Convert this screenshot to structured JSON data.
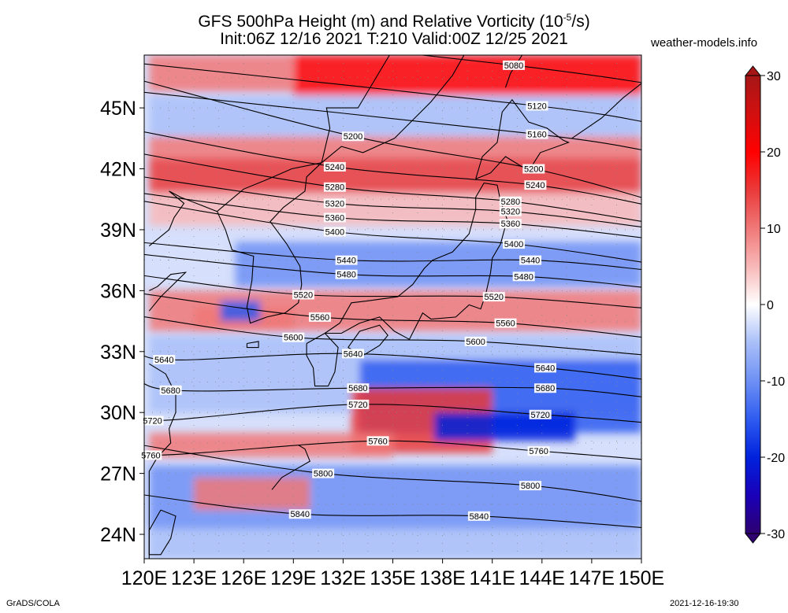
{
  "title": {
    "line1_a": "GFS 500hPa Height (m) and Relative Vorticity (10",
    "line1_sup": "-5",
    "line1_b": "/s)",
    "line2": "Init:06Z 12/16 2021 T:210 Valid:00Z 12/25 2021"
  },
  "site_label": "weather-models.info",
  "footer": {
    "left": "GrADS/COLA",
    "right": "2021-12-16-19:30"
  },
  "map": {
    "lon_range": [
      120,
      150
    ],
    "lat_range": [
      22.8,
      47.6
    ],
    "lon_ticks": [
      "120E",
      "123E",
      "126E",
      "129E",
      "132E",
      "135E",
      "138E",
      "141E",
      "144E",
      "147E",
      "150E"
    ],
    "lat_ticks": [
      "24N",
      "27N",
      "30N",
      "33N",
      "36N",
      "39N",
      "42N",
      "45N"
    ],
    "height_contours": [
      {
        "value": 5080,
        "label_pos": [
          [
            142.3,
            47.1
          ]
        ]
      },
      {
        "value": 5120,
        "label_pos": [
          [
            143.7,
            45.1
          ]
        ]
      },
      {
        "value": 5160,
        "label_pos": [
          [
            143.7,
            43.7
          ]
        ]
      },
      {
        "value": 5200,
        "label_pos": [
          [
            132.6,
            43.6
          ],
          [
            143.5,
            42.0
          ]
        ]
      },
      {
        "value": 5240,
        "label_pos": [
          [
            131.5,
            42.1
          ],
          [
            143.6,
            41.2
          ]
        ]
      },
      {
        "value": 5280,
        "label_pos": [
          [
            131.5,
            41.1
          ],
          [
            142.1,
            40.4
          ]
        ]
      },
      {
        "value": 5320,
        "label_pos": [
          [
            131.5,
            40.3
          ],
          [
            142.1,
            39.9
          ]
        ]
      },
      {
        "value": 5360,
        "label_pos": [
          [
            131.5,
            39.6
          ],
          [
            142.1,
            39.3
          ]
        ]
      },
      {
        "value": 5400,
        "label_pos": [
          [
            131.5,
            38.9
          ],
          [
            142.3,
            38.3
          ]
        ]
      },
      {
        "value": 5440,
        "label_pos": [
          [
            132.2,
            37.5
          ],
          [
            143.3,
            37.5
          ]
        ]
      },
      {
        "value": 5480,
        "label_pos": [
          [
            132.2,
            36.8
          ],
          [
            142.9,
            36.7
          ]
        ]
      },
      {
        "value": 5520,
        "label_pos": [
          [
            129.6,
            35.8
          ],
          [
            141.1,
            35.7
          ]
        ]
      },
      {
        "value": 5560,
        "label_pos": [
          [
            130.6,
            34.7
          ],
          [
            141.8,
            34.4
          ]
        ]
      },
      {
        "value": 5600,
        "label_pos": [
          [
            129.0,
            33.7
          ],
          [
            140.0,
            33.5
          ]
        ]
      },
      {
        "value": 5640,
        "label_pos": [
          [
            121.2,
            32.6
          ],
          [
            132.6,
            32.9
          ],
          [
            144.2,
            32.2
          ]
        ]
      },
      {
        "value": 5680,
        "label_pos": [
          [
            121.6,
            31.1
          ],
          [
            132.9,
            31.2
          ],
          [
            144.2,
            31.2
          ]
        ]
      },
      {
        "value": 5720,
        "label_pos": [
          [
            120.5,
            29.6
          ],
          [
            132.9,
            30.4
          ],
          [
            143.9,
            29.9
          ]
        ]
      },
      {
        "value": 5760,
        "label_pos": [
          [
            120.4,
            27.9
          ],
          [
            134.1,
            28.6
          ],
          [
            143.8,
            28.1
          ]
        ]
      },
      {
        "value": 5800,
        "label_pos": [
          [
            130.8,
            27.0
          ],
          [
            143.3,
            26.4
          ]
        ]
      },
      {
        "value": 5840,
        "label_pos": [
          [
            129.4,
            25.0
          ],
          [
            140.2,
            24.9
          ]
        ]
      }
    ],
    "vorticity_regions": [
      {
        "sign": "positive",
        "strength": 14,
        "lon": [
          120.3,
          150.0
        ],
        "lat": [
          40.8,
          42.6
        ]
      },
      {
        "sign": "positive",
        "strength": 9,
        "lon": [
          120.3,
          150.0
        ],
        "lat": [
          42.5,
          43.6
        ]
      },
      {
        "sign": "positive",
        "strength": 18,
        "lon": [
          129.0,
          150.0
        ],
        "lat": [
          45.6,
          47.6
        ]
      },
      {
        "sign": "positive",
        "strength": 8,
        "lon": [
          120.3,
          129.0
        ],
        "lat": [
          45.8,
          47.6
        ]
      },
      {
        "sign": "positive",
        "strength": 5,
        "lon": [
          120.3,
          150.0
        ],
        "lat": [
          39.2,
          40.8
        ]
      },
      {
        "sign": "negative",
        "strength": 6,
        "lon": [
          120.3,
          150.0
        ],
        "lat": [
          43.6,
          45.6
        ]
      },
      {
        "sign": "negative",
        "strength": 8,
        "lon": [
          125.5,
          150.0
        ],
        "lat": [
          36.2,
          38.4
        ]
      },
      {
        "sign": "positive",
        "strength": 8,
        "lon": [
          120.3,
          150.0
        ],
        "lat": [
          34.0,
          36.0
        ]
      },
      {
        "sign": "positive",
        "strength": 12,
        "lon": [
          123.0,
          129.0
        ],
        "lat": [
          34.0,
          35.2
        ]
      },
      {
        "sign": "negative",
        "strength": 16,
        "lon": [
          124.6,
          127.0
        ],
        "lat": [
          34.5,
          35.5
        ]
      },
      {
        "sign": "negative",
        "strength": 6,
        "lon": [
          120.3,
          150.0
        ],
        "lat": [
          30.0,
          33.8
        ]
      },
      {
        "sign": "negative",
        "strength": 14,
        "lon": [
          133.0,
          150.0
        ],
        "lat": [
          29.0,
          32.6
        ]
      },
      {
        "sign": "positive",
        "strength": 16,
        "lon": [
          132.5,
          141.0
        ],
        "lat": [
          28.0,
          31.2
        ]
      },
      {
        "sign": "negative",
        "strength": 18,
        "lon": [
          137.5,
          146.0
        ],
        "lat": [
          28.6,
          30.0
        ]
      },
      {
        "sign": "positive",
        "strength": 10,
        "lon": [
          120.3,
          135.0
        ],
        "lat": [
          27.8,
          29.0
        ]
      },
      {
        "sign": "negative",
        "strength": 10,
        "lon": [
          120.3,
          150.0
        ],
        "lat": [
          24.2,
          27.4
        ]
      },
      {
        "sign": "positive",
        "strength": 10,
        "lon": [
          123.0,
          130.0
        ],
        "lat": [
          25.2,
          26.8
        ]
      },
      {
        "sign": "negative",
        "strength": 7,
        "lon": [
          120.3,
          150.0
        ],
        "lat": [
          22.8,
          24.3
        ]
      }
    ]
  },
  "colorbar": {
    "range": [
      -30,
      30
    ],
    "tick_labels": [
      "30",
      "20",
      "10",
      "0",
      "-10",
      "-20",
      "-30"
    ],
    "tick_values": [
      30,
      20,
      10,
      0,
      -10,
      -20,
      -30
    ],
    "colors": [
      "#2e0070",
      "#1a00b8",
      "#0022dd",
      "#2f5cf0",
      "#6e90f4",
      "#a9bff8",
      "#ffffff",
      "#f8b8b8",
      "#f07878",
      "#ea3a3a",
      "#ff0000",
      "#d21010",
      "#a61616"
    ]
  }
}
